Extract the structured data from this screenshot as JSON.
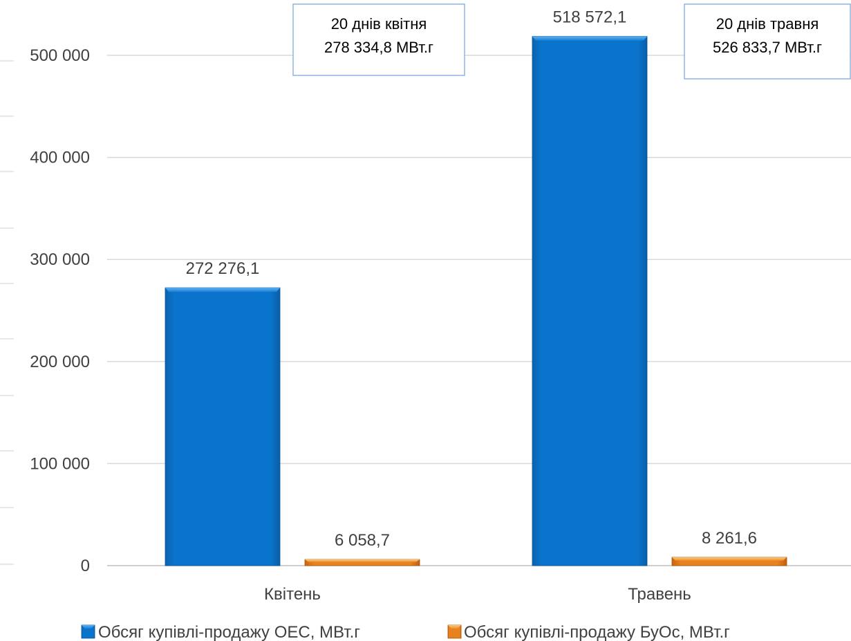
{
  "chart_data": {
    "type": "bar",
    "categories": [
      "Квітень",
      "Травень"
    ],
    "series": [
      {
        "name": "Обсяг купівлі-продажу ОЕС, МВт.г",
        "values": [
          272276.1,
          518572.1
        ],
        "labels": [
          "272 276,1",
          "518 572,1"
        ],
        "color": "#0A74CC"
      },
      {
        "name": "Обсяг купівлі-продажу БуОс, МВт.г",
        "values": [
          6058.7,
          8261.6
        ],
        "labels": [
          "6 058,7",
          "8 261,6"
        ],
        "color": "#E8821E"
      }
    ],
    "ylim": [
      0,
      500000
    ],
    "yticks": [
      0,
      100000,
      200000,
      300000,
      400000,
      500000
    ],
    "ytick_labels": [
      "0",
      "100 000",
      "200 000",
      "300 000",
      "400 000",
      "500 000"
    ],
    "grid": true,
    "legend": "bottom",
    "title": "",
    "xlabel": "",
    "ylabel": "",
    "annotations": [
      {
        "category": "Квітень",
        "lines": [
          "20 днів квітня",
          "278 334,8 МВт.г"
        ]
      },
      {
        "category": "Травень",
        "lines": [
          "20 днів травня",
          "526 833,7 МВт.г"
        ]
      }
    ]
  }
}
